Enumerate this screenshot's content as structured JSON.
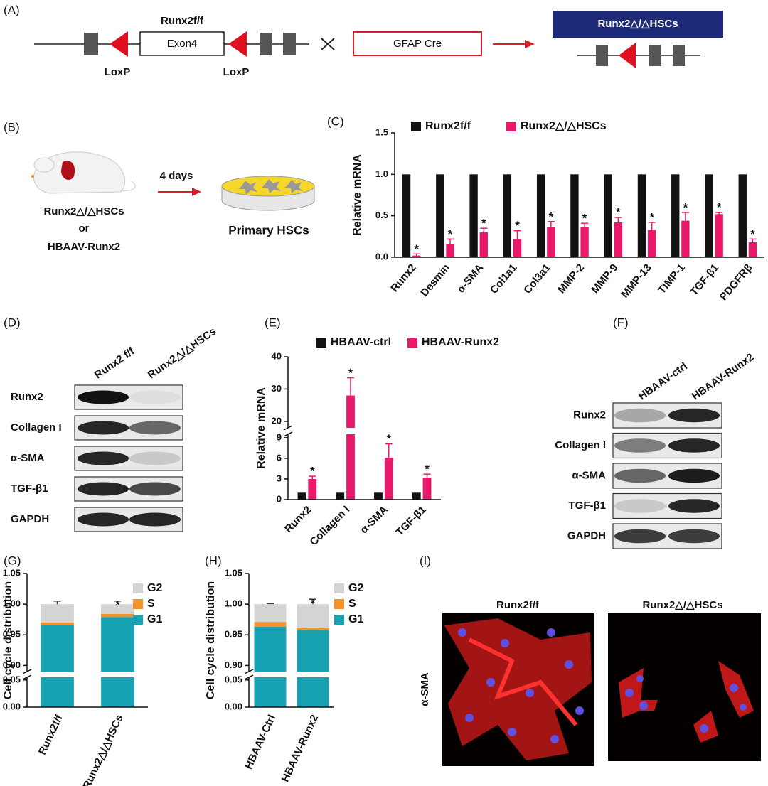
{
  "panel_labels": [
    "(A)",
    "(B)",
    "(C)",
    "(D)",
    "(E)",
    "(F)",
    "(G)",
    "(H)",
    "(I)"
  ],
  "panel_a": {
    "floxed_label": "Runx2f/f",
    "exon": "Exon4",
    "loxp": [
      "LoxP",
      "LoxP"
    ],
    "cre": "GFAP Cre",
    "result": "Runx2△/△HSCs"
  },
  "panel_b": {
    "mouse_label": "Runx2△/△HSCs",
    "or": "or",
    "alt": "HBAAV-Runx2",
    "arrow_label": "4 days",
    "result": "Primary HSCs"
  },
  "panel_d": {
    "columns": [
      "Runx2 f/f",
      "Runx2△/△HSCs"
    ],
    "rows": [
      "Runx2",
      "Collagen I",
      "α-SMA",
      "TGF-β1",
      "GAPDH"
    ]
  },
  "panel_f": {
    "columns": [
      "HBAAV-ctrl",
      "HBAAV-Runx2"
    ],
    "rows": [
      "Runx2",
      "Collagen I",
      "α-SMA",
      "TGF-β1",
      "GAPDH"
    ]
  },
  "panel_i": {
    "columns": [
      "Runx2f/f",
      "Runx2△/△HSCs"
    ],
    "row": "α-SMA"
  },
  "chart_data": [
    {
      "type": "bar",
      "y_label": "Relative mRNA",
      "categories": [
        "Runx2",
        "Desmin",
        "α-SMA",
        "Col1a1",
        "Col3a1",
        "MMP-2",
        "MMP-9",
        "MMP-13",
        "TIMP-1",
        "TGF-β1",
        "PDGFRβ"
      ],
      "series": [
        {
          "name": "Runx2f/f",
          "color": "#111111",
          "values": [
            1,
            1,
            1,
            1,
            1,
            1,
            1,
            1,
            1,
            1,
            1
          ]
        },
        {
          "name": "Runx2△/△HSCs",
          "color": "#e8196b",
          "values": [
            0.02,
            0.16,
            0.3,
            0.22,
            0.36,
            0.36,
            0.42,
            0.33,
            0.44,
            0.52,
            0.18
          ],
          "errors": [
            0.02,
            0.06,
            0.05,
            0.1,
            0.07,
            0.05,
            0.06,
            0.09,
            0.1,
            0.02,
            0.04
          ],
          "sig": [
            "*",
            "*",
            "*",
            "*",
            "*",
            "*",
            "*",
            "*",
            "*",
            "*",
            "*"
          ]
        }
      ],
      "ylim": [
        0,
        1.5
      ],
      "yticks": [
        {
          "value": 0,
          "label": "0.0"
        },
        {
          "value": 0.5,
          "label": "0.5"
        },
        {
          "value": 1,
          "label": "1.0"
        },
        {
          "value": 1.5,
          "label": "1.5"
        }
      ],
      "legend": "top"
    },
    {
      "type": "bar",
      "y_label": "Relative mRNA",
      "categories": [
        "Runx2",
        "Collagen I",
        "α-SMA",
        "TGF-β1"
      ],
      "series": [
        {
          "name": "HBAAV-ctrl",
          "color": "#111111",
          "values": [
            1,
            1,
            1,
            1
          ]
        },
        {
          "name": "HBAAV-Runx2",
          "color": "#e8196b",
          "values": [
            3.0,
            28,
            6.1,
            3.2
          ],
          "errors": [
            0.4,
            5.5,
            2.0,
            0.5
          ],
          "sig": [
            "*",
            "*",
            "*",
            "*"
          ]
        }
      ],
      "ylim": [
        0,
        40
      ],
      "ybreak": [
        9.5,
        18
      ],
      "yticks": [
        0,
        3,
        6,
        9,
        20,
        30,
        40
      ],
      "legend": "top"
    },
    {
      "type": "stacked-bar",
      "y_label": "Cell cycle distribution",
      "categories": [
        "Runx2f/f",
        "Runx2△/△HSCs"
      ],
      "series": [
        {
          "name": "G2",
          "color": "#d4d4d4",
          "values": [
            0.03,
            0.016
          ],
          "errors": [
            0.005,
            0.005
          ],
          "sig": [
            null,
            "*"
          ]
        },
        {
          "name": "S",
          "color": "#f5922a",
          "values": [
            0.004,
            0.005
          ],
          "errors": [
            0.003,
            0.003
          ]
        },
        {
          "name": "G1",
          "color": "#17a2b2",
          "values": [
            0.966,
            0.979
          ]
        }
      ],
      "ylim": [
        0,
        1.05
      ],
      "ybreak": [
        0.055,
        0.89
      ],
      "yticks": [
        {
          "value": 0,
          "label": "0.00"
        },
        {
          "value": 0.05,
          "label": "0.05"
        },
        {
          "value": 0.9,
          "label": "0.90"
        },
        {
          "value": 0.95,
          "label": "0.95"
        },
        {
          "value": 1,
          "label": "1.00"
        },
        {
          "value": 1.05,
          "label": "1.05"
        }
      ],
      "legend": "right"
    },
    {
      "type": "stacked-bar",
      "y_label": "Cell cycle distribution",
      "categories": [
        "HBAAV-Ctrl",
        "HBAAV-Runx2"
      ],
      "series": [
        {
          "name": "G2",
          "color": "#d4d4d4",
          "values": [
            0.029,
            0.039
          ],
          "errors": [
            0.001,
            0.008
          ],
          "sig": [
            null,
            "*"
          ]
        },
        {
          "name": "S",
          "color": "#f5922a",
          "values": [
            0.008,
            0.003
          ],
          "errors": [
            0.002,
            0.002
          ]
        },
        {
          "name": "G1",
          "color": "#17a2b2",
          "values": [
            0.963,
            0.958
          ]
        }
      ],
      "ylim": [
        0,
        1.05
      ],
      "ybreak": [
        0.055,
        0.89
      ],
      "yticks": [
        {
          "value": 0,
          "label": "0.00"
        },
        {
          "value": 0.05,
          "label": "0.05"
        },
        {
          "value": 0.9,
          "label": "0.90"
        },
        {
          "value": 0.95,
          "label": "0.95"
        },
        {
          "value": 1,
          "label": "1.00"
        },
        {
          "value": 1.05,
          "label": "1.05"
        }
      ],
      "legend": "right"
    }
  ]
}
